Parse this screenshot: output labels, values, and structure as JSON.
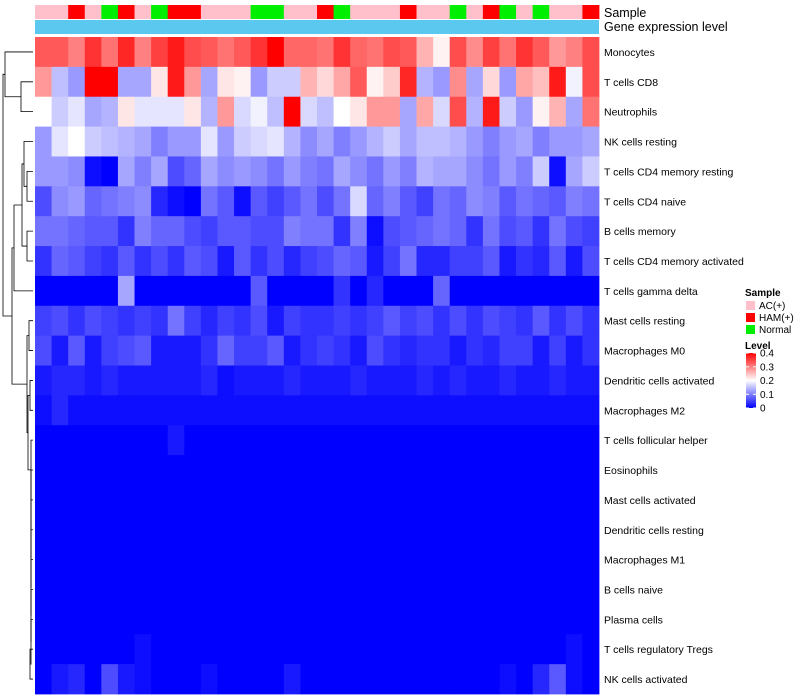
{
  "chart_data": {
    "type": "heatmap",
    "title": "",
    "annotation_labels": {
      "sample": "Sample",
      "gene_level": "Gene expression level"
    },
    "rows": [
      "Monocytes",
      "T cells CD8",
      "Neutrophils",
      "NK cells resting",
      "T cells CD4 memory resting",
      "T cells CD4 naive",
      "B cells memory",
      "T cells CD4 memory activated",
      "T cells gamma delta",
      "Mast cells resting",
      "Macrophages M0",
      "Dendritic cells activated",
      "Macrophages M2",
      "T cells follicular helper",
      "Eosinophils",
      "Mast cells activated",
      "Dendritic cells resting",
      "Macrophages M1",
      "B cells naive",
      "Plasma cells",
      "T cells regulatory  Tregs",
      "NK cells activated"
    ],
    "sample_groups": [
      "AC(+)",
      "AC(+)",
      "HAM(+)",
      "AC(+)",
      "Normal",
      "HAM(+)",
      "AC(+)",
      "Normal",
      "HAM(+)",
      "HAM(+)",
      "AC(+)",
      "AC(+)",
      "AC(+)",
      "Normal",
      "Normal",
      "AC(+)",
      "AC(+)",
      "HAM(+)",
      "Normal",
      "AC(+)",
      "AC(+)",
      "AC(+)",
      "HAM(+)",
      "AC(+)",
      "AC(+)",
      "Normal",
      "AC(+)",
      "HAM(+)",
      "Normal",
      "AC(+)",
      "Normal",
      "AC(+)",
      "AC(+)",
      "HAM(+)"
    ],
    "values": [
      [
        0.33,
        0.33,
        0.3,
        0.36,
        0.31,
        0.37,
        0.3,
        0.35,
        0.38,
        0.34,
        0.33,
        0.31,
        0.33,
        0.36,
        0.4,
        0.32,
        0.32,
        0.31,
        0.36,
        0.32,
        0.31,
        0.34,
        0.33,
        0.26,
        0.21,
        0.34,
        0.29,
        0.35,
        0.31,
        0.36,
        0.33,
        0.28,
        0.3,
        0.34
      ],
      [
        0.28,
        0.15,
        0.12,
        0.4,
        0.4,
        0.13,
        0.13,
        0.22,
        0.38,
        0.28,
        0.13,
        0.22,
        0.21,
        0.12,
        0.16,
        0.16,
        0.26,
        0.23,
        0.27,
        0.33,
        0.21,
        0.24,
        0.37,
        0.14,
        0.12,
        0.29,
        0.13,
        0.23,
        0.12,
        0.27,
        0.25,
        0.38,
        0.19,
        0.34
      ],
      [
        0.2,
        0.16,
        0.18,
        0.13,
        0.14,
        0.22,
        0.18,
        0.18,
        0.18,
        0.22,
        0.14,
        0.28,
        0.17,
        0.19,
        0.15,
        0.4,
        0.17,
        0.15,
        0.2,
        0.22,
        0.28,
        0.28,
        0.13,
        0.27,
        0.17,
        0.34,
        0.14,
        0.38,
        0.16,
        0.12,
        0.21,
        0.26,
        0.13,
        0.31
      ],
      [
        0.12,
        0.18,
        0.2,
        0.16,
        0.15,
        0.14,
        0.13,
        0.1,
        0.12,
        0.12,
        0.18,
        0.12,
        0.16,
        0.17,
        0.18,
        0.14,
        0.11,
        0.13,
        0.1,
        0.12,
        0.14,
        0.16,
        0.13,
        0.15,
        0.15,
        0.14,
        0.12,
        0.1,
        0.12,
        0.13,
        0.1,
        0.12,
        0.12,
        0.13
      ],
      [
        0.12,
        0.12,
        0.11,
        0.01,
        0.0,
        0.13,
        0.1,
        0.13,
        0.06,
        0.08,
        0.13,
        0.11,
        0.12,
        0.11,
        0.09,
        0.12,
        0.1,
        0.09,
        0.13,
        0.11,
        0.09,
        0.12,
        0.1,
        0.14,
        0.13,
        0.13,
        0.11,
        0.09,
        0.12,
        0.1,
        0.16,
        0.01,
        0.13,
        0.16
      ],
      [
        0.06,
        0.11,
        0.12,
        0.08,
        0.09,
        0.1,
        0.11,
        0.03,
        0.01,
        0.0,
        0.09,
        0.07,
        0.01,
        0.07,
        0.05,
        0.07,
        0.09,
        0.06,
        0.09,
        0.17,
        0.08,
        0.1,
        0.07,
        0.05,
        0.09,
        0.08,
        0.11,
        0.1,
        0.07,
        0.09,
        0.08,
        0.07,
        0.1,
        0.09
      ],
      [
        0.09,
        0.09,
        0.08,
        0.07,
        0.07,
        0.04,
        0.1,
        0.08,
        0.08,
        0.06,
        0.05,
        0.07,
        0.07,
        0.06,
        0.06,
        0.1,
        0.09,
        0.09,
        0.04,
        0.1,
        0.01,
        0.06,
        0.07,
        0.08,
        0.09,
        0.08,
        0.04,
        0.09,
        0.06,
        0.07,
        0.04,
        0.09,
        0.06,
        0.05
      ],
      [
        0.04,
        0.08,
        0.07,
        0.05,
        0.04,
        0.07,
        0.04,
        0.06,
        0.04,
        0.07,
        0.06,
        0.02,
        0.07,
        0.04,
        0.06,
        0.03,
        0.05,
        0.06,
        0.08,
        0.07,
        0.02,
        0.05,
        0.09,
        0.03,
        0.03,
        0.05,
        0.05,
        0.07,
        0.02,
        0.04,
        0.03,
        0.07,
        0.02,
        0.06
      ],
      [
        0.0,
        0.0,
        0.0,
        0.0,
        0.0,
        0.13,
        0.0,
        0.0,
        0.0,
        0.0,
        0.0,
        0.0,
        0.0,
        0.07,
        0.0,
        0.0,
        0.0,
        0.0,
        0.04,
        0.0,
        0.03,
        0.0,
        0.0,
        0.0,
        0.08,
        0.0,
        0.0,
        0.0,
        0.0,
        0.0,
        0.0,
        0.0,
        0.0,
        0.0
      ],
      [
        0.05,
        0.06,
        0.04,
        0.06,
        0.05,
        0.04,
        0.05,
        0.04,
        0.09,
        0.05,
        0.03,
        0.05,
        0.04,
        0.06,
        0.02,
        0.05,
        0.04,
        0.04,
        0.05,
        0.04,
        0.05,
        0.07,
        0.05,
        0.06,
        0.04,
        0.06,
        0.04,
        0.06,
        0.05,
        0.04,
        0.07,
        0.04,
        0.06,
        0.04
      ],
      [
        0.06,
        0.02,
        0.07,
        0.02,
        0.05,
        0.06,
        0.07,
        0.02,
        0.02,
        0.02,
        0.04,
        0.08,
        0.05,
        0.05,
        0.07,
        0.02,
        0.04,
        0.05,
        0.04,
        0.02,
        0.06,
        0.04,
        0.03,
        0.04,
        0.04,
        0.02,
        0.04,
        0.03,
        0.05,
        0.05,
        0.02,
        0.05,
        0.02,
        0.04
      ],
      [
        0.02,
        0.03,
        0.03,
        0.02,
        0.03,
        0.02,
        0.02,
        0.02,
        0.02,
        0.02,
        0.03,
        0.01,
        0.02,
        0.02,
        0.02,
        0.03,
        0.02,
        0.02,
        0.02,
        0.03,
        0.02,
        0.02,
        0.02,
        0.03,
        0.02,
        0.03,
        0.02,
        0.02,
        0.03,
        0.02,
        0.02,
        0.03,
        0.02,
        0.02
      ],
      [
        0.01,
        0.03,
        0.01,
        0.01,
        0.01,
        0.01,
        0.01,
        0.01,
        0.01,
        0.01,
        0.01,
        0.01,
        0.01,
        0.01,
        0.01,
        0.01,
        0.01,
        0.01,
        0.01,
        0.01,
        0.01,
        0.01,
        0.01,
        0.01,
        0.01,
        0.01,
        0.01,
        0.01,
        0.01,
        0.01,
        0.01,
        0.01,
        0.01,
        0.01
      ],
      [
        0.0,
        0.0,
        0.0,
        0.0,
        0.0,
        0.0,
        0.0,
        0.0,
        0.02,
        0.0,
        0.0,
        0.0,
        0.0,
        0.0,
        0.0,
        0.0,
        0.0,
        0.0,
        0.0,
        0.0,
        0.0,
        0.0,
        0.0,
        0.0,
        0.0,
        0.0,
        0.0,
        0.0,
        0.0,
        0.0,
        0.0,
        0.0,
        0.0,
        0.0
      ],
      [
        0.0,
        0.0,
        0.0,
        0.0,
        0.0,
        0.0,
        0.0,
        0.0,
        0.0,
        0.0,
        0.0,
        0.0,
        0.0,
        0.0,
        0.0,
        0.0,
        0.0,
        0.0,
        0.0,
        0.0,
        0.0,
        0.0,
        0.0,
        0.0,
        0.0,
        0.0,
        0.0,
        0.0,
        0.0,
        0.0,
        0.0,
        0.0,
        0.0,
        0.0
      ],
      [
        0.0,
        0.0,
        0.0,
        0.0,
        0.0,
        0.0,
        0.0,
        0.0,
        0.0,
        0.0,
        0.0,
        0.0,
        0.0,
        0.0,
        0.0,
        0.0,
        0.0,
        0.0,
        0.0,
        0.0,
        0.0,
        0.0,
        0.0,
        0.0,
        0.0,
        0.0,
        0.0,
        0.0,
        0.0,
        0.0,
        0.0,
        0.0,
        0.0,
        0.0
      ],
      [
        0.0,
        0.0,
        0.0,
        0.0,
        0.0,
        0.0,
        0.0,
        0.0,
        0.0,
        0.0,
        0.0,
        0.0,
        0.0,
        0.0,
        0.0,
        0.0,
        0.0,
        0.0,
        0.0,
        0.0,
        0.0,
        0.0,
        0.0,
        0.0,
        0.0,
        0.0,
        0.0,
        0.0,
        0.0,
        0.0,
        0.0,
        0.0,
        0.0,
        0.0
      ],
      [
        0.0,
        0.0,
        0.0,
        0.0,
        0.0,
        0.0,
        0.0,
        0.0,
        0.0,
        0.0,
        0.0,
        0.0,
        0.0,
        0.0,
        0.0,
        0.0,
        0.0,
        0.0,
        0.0,
        0.0,
        0.0,
        0.0,
        0.0,
        0.0,
        0.0,
        0.0,
        0.0,
        0.0,
        0.0,
        0.0,
        0.0,
        0.0,
        0.0,
        0.0
      ],
      [
        0.0,
        0.0,
        0.0,
        0.0,
        0.0,
        0.0,
        0.0,
        0.0,
        0.0,
        0.0,
        0.0,
        0.0,
        0.0,
        0.0,
        0.0,
        0.0,
        0.0,
        0.0,
        0.0,
        0.0,
        0.0,
        0.0,
        0.0,
        0.0,
        0.0,
        0.0,
        0.0,
        0.0,
        0.0,
        0.0,
        0.0,
        0.0,
        0.0,
        0.0
      ],
      [
        0.0,
        0.0,
        0.0,
        0.0,
        0.0,
        0.0,
        0.0,
        0.0,
        0.0,
        0.0,
        0.0,
        0.0,
        0.0,
        0.0,
        0.0,
        0.0,
        0.0,
        0.0,
        0.0,
        0.0,
        0.0,
        0.0,
        0.0,
        0.0,
        0.0,
        0.0,
        0.0,
        0.0,
        0.0,
        0.0,
        0.0,
        0.0,
        0.0,
        0.0
      ],
      [
        0.0,
        0.0,
        0.0,
        0.0,
        0.0,
        0.0,
        0.01,
        0.0,
        0.0,
        0.0,
        0.0,
        0.0,
        0.0,
        0.0,
        0.0,
        0.0,
        0.0,
        0.0,
        0.0,
        0.0,
        0.0,
        0.0,
        0.0,
        0.0,
        0.0,
        0.0,
        0.0,
        0.0,
        0.0,
        0.0,
        0.0,
        0.0,
        0.01,
        0.0
      ],
      [
        0.0,
        0.02,
        0.03,
        0.0,
        0.06,
        0.02,
        0.01,
        0.0,
        0.0,
        0.0,
        0.01,
        0.0,
        0.0,
        0.0,
        0.0,
        0.02,
        0.0,
        0.0,
        0.0,
        0.0,
        0.0,
        0.0,
        0.0,
        0.0,
        0.0,
        0.0,
        0.0,
        0.0,
        0.01,
        0.0,
        0.03,
        0.07,
        0.01,
        0.0
      ]
    ],
    "legend": {
      "sample_title": "Sample",
      "sample_entries": [
        {
          "label": "AC(+)",
          "color": "#ffc0cb"
        },
        {
          "label": "HAM(+)",
          "color": "#ff0000"
        },
        {
          "label": "Normal",
          "color": "#00ee00"
        }
      ],
      "level_title": "Level",
      "level_ticks": [
        "0.4",
        "0.3",
        "0.2",
        "0.1",
        "0"
      ],
      "level_range": [
        0,
        0.4
      ],
      "colors": {
        "low": "#0000ff",
        "mid": "#ffffff",
        "high": "#ff0000",
        "gene_bar": "#5bc8ef"
      }
    }
  }
}
